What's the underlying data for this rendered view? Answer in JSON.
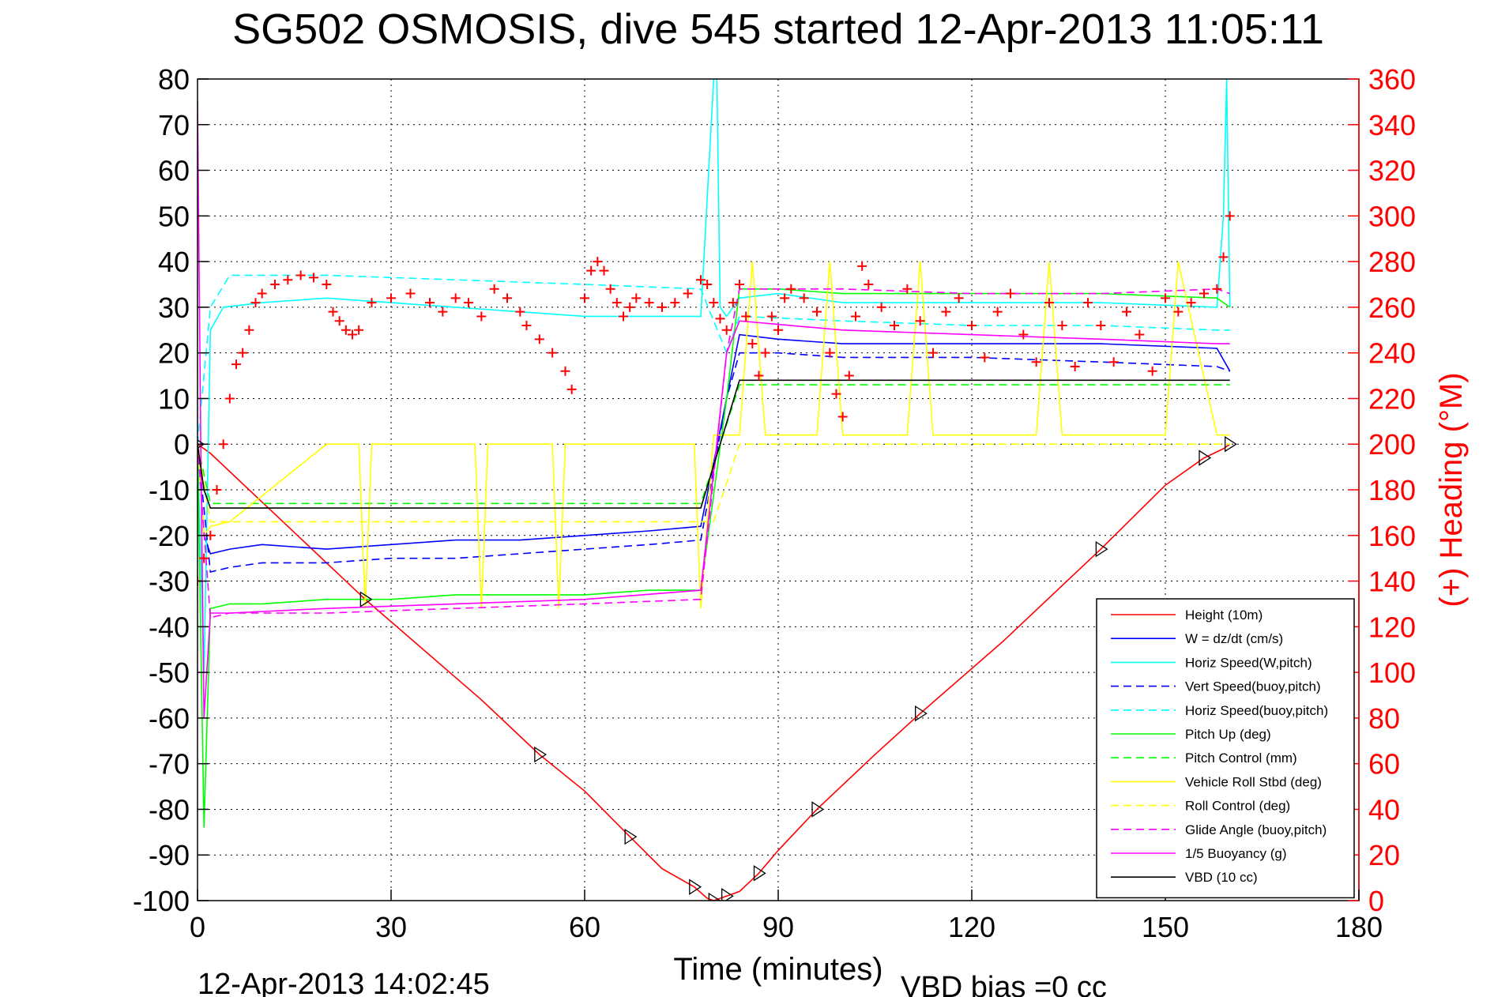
{
  "title": "SG502 OSMOSIS, dive 545 started 12-Apr-2013 11:05:11",
  "footer": {
    "timestamp": "12-Apr-2013 14:02:45",
    "vbd_bias": "VBD bias =0 cc"
  },
  "colors": {
    "height": "#ff0000",
    "w": "#0000ff",
    "horiz_speed": "#00ffff",
    "vert_speed_buoy": "#0000ff",
    "horiz_speed_buoy": "#00ffff",
    "pitch": "#00ff00",
    "pitch_control": "#00ff00",
    "roll": "#ffff00",
    "roll_control": "#ffff00",
    "glide_angle": "#ff00ff",
    "buoyancy": "#ff00ff",
    "vbd": "#000000",
    "heading": "#ff0000"
  },
  "chart_data": {
    "type": "line",
    "xlabel": "Time (minutes)",
    "ylabel": "",
    "y2label": "(+) Heading (°M)",
    "xlim": [
      0,
      180
    ],
    "ylim": [
      -100,
      80
    ],
    "y2lim": [
      0,
      360
    ],
    "xticks": [
      0,
      30,
      60,
      90,
      120,
      150,
      180
    ],
    "yticks": [
      80,
      70,
      60,
      50,
      40,
      30,
      20,
      10,
      0,
      -10,
      -20,
      -30,
      -40,
      -50,
      -60,
      -70,
      -80,
      -90,
      -100
    ],
    "y2ticks": [
      360,
      340,
      320,
      300,
      280,
      260,
      240,
      220,
      200,
      180,
      160,
      140,
      120,
      100,
      80,
      60,
      40,
      20,
      0
    ],
    "grid": true,
    "legend_position": "bottom-right",
    "series": [
      {
        "name": "Height (10m)",
        "style": "solid",
        "color": "#ff0000",
        "x": [
          0,
          2,
          26,
          44,
          53,
          60,
          67,
          72,
          77,
          79,
          80,
          81,
          82,
          84,
          87,
          90,
          96,
          105,
          112,
          125,
          140,
          150,
          156,
          159,
          160
        ],
        "y": [
          0,
          -2,
          -34,
          -56,
          -68,
          -76,
          -86,
          -93,
          -97,
          -99.5,
          -100,
          -99.5,
          -99,
          -98,
          -94,
          -89,
          -80,
          -68,
          -59,
          -43,
          -23,
          -9,
          -3,
          -1,
          0
        ]
      },
      {
        "name": "W = dz/dt (cm/s)",
        "style": "solid",
        "color": "#0000ff",
        "x": [
          0,
          1,
          2,
          5,
          10,
          20,
          30,
          40,
          50,
          60,
          70,
          78,
          82,
          84,
          90,
          100,
          120,
          140,
          158,
          160
        ],
        "y": [
          0,
          -20,
          -24,
          -23,
          -22,
          -23,
          -22,
          -21,
          -21,
          -20,
          -19,
          -18,
          10,
          24,
          23,
          22,
          22,
          22,
          21,
          16
        ]
      },
      {
        "name": "Horiz Speed(W,pitch)",
        "style": "solid",
        "color": "#00ffff",
        "x": [
          0,
          1,
          2,
          4,
          10,
          20,
          30,
          40,
          50,
          60,
          70,
          78,
          80,
          80.5,
          81,
          82,
          84,
          90,
          100,
          120,
          140,
          158,
          159,
          159.5,
          160
        ],
        "y": [
          0,
          -50,
          25,
          30,
          31,
          32,
          31,
          30,
          29,
          28,
          28,
          28,
          80,
          80,
          30,
          28,
          32,
          33,
          31,
          31,
          31,
          30,
          50,
          80,
          30
        ]
      },
      {
        "name": "Vert Speed(buoy,pitch)",
        "style": "dashed",
        "color": "#0000ff",
        "x": [
          0,
          2,
          5,
          10,
          20,
          30,
          40,
          50,
          60,
          70,
          78,
          82,
          84,
          90,
          100,
          120,
          140,
          158,
          160
        ],
        "y": [
          0,
          -28,
          -27,
          -26,
          -26,
          -25,
          -25,
          -24,
          -23,
          -22,
          -21,
          10,
          20,
          20,
          19,
          19,
          18,
          17,
          16
        ]
      },
      {
        "name": "Horiz Speed(buoy,pitch)",
        "style": "dashed",
        "color": "#00ffff",
        "x": [
          0,
          2,
          5,
          20,
          40,
          60,
          78,
          82,
          84,
          100,
          120,
          140,
          158,
          160
        ],
        "y": [
          0,
          30,
          37,
          37,
          36,
          35,
          34,
          20,
          28,
          27,
          26,
          26,
          25,
          25
        ]
      },
      {
        "name": "Pitch Up (deg)",
        "style": "solid",
        "color": "#00ff00",
        "x": [
          0,
          1,
          2,
          5,
          10,
          20,
          30,
          40,
          50,
          60,
          70,
          78,
          82,
          84,
          90,
          100,
          120,
          140,
          158,
          160
        ],
        "y": [
          0,
          -84,
          -36,
          -35,
          -35,
          -34,
          -34,
          -33,
          -33,
          -33,
          -32,
          -32,
          10,
          34,
          34,
          33,
          33,
          33,
          32,
          30
        ]
      },
      {
        "name": "Pitch Control (mm)",
        "style": "dashed",
        "color": "#00ff00",
        "x": [
          0,
          2,
          78,
          84,
          158,
          160
        ],
        "y": [
          0,
          -13,
          -13,
          13,
          13,
          13
        ]
      },
      {
        "name": "Vehicle Roll Stbd (deg)",
        "style": "solid",
        "color": "#ffff00",
        "x": [
          0,
          1,
          2,
          5,
          20,
          25,
          26,
          27,
          40,
          43,
          44,
          45,
          55,
          56,
          57,
          58,
          70,
          77,
          78,
          80,
          84,
          86,
          88,
          90,
          96,
          98,
          100,
          110,
          112,
          114,
          130,
          132,
          134,
          150,
          152,
          158,
          160
        ],
        "y": [
          0,
          -20,
          -18,
          -17,
          0,
          0,
          -36,
          0,
          0,
          0,
          -36,
          0,
          0,
          -36,
          0,
          0,
          0,
          0,
          -36,
          2,
          2,
          40,
          2,
          2,
          2,
          40,
          2,
          2,
          40,
          2,
          2,
          40,
          2,
          2,
          40,
          2,
          2
        ]
      },
      {
        "name": "Roll Control (deg)",
        "style": "dashed",
        "color": "#ffff00",
        "x": [
          0,
          2,
          80,
          84,
          158,
          160
        ],
        "y": [
          0,
          -17,
          -17,
          0,
          0,
          0
        ]
      },
      {
        "name": "Glide Angle (buoy,pitch)",
        "style": "dashed",
        "color": "#ff00ff",
        "x": [
          0,
          2,
          5,
          20,
          40,
          60,
          78,
          82,
          84,
          100,
          120,
          140,
          158,
          160
        ],
        "y": [
          0,
          -38,
          -37,
          -37,
          -36,
          -35,
          -34,
          20,
          34,
          34,
          33,
          33,
          34,
          33
        ]
      },
      {
        "name": "1/5 Buoyancy (g)",
        "style": "solid",
        "color": "#ff00ff",
        "x": [
          0,
          0.5,
          1,
          2,
          5,
          20,
          40,
          60,
          78,
          82,
          84,
          100,
          120,
          140,
          158,
          160
        ],
        "y": [
          75,
          0,
          -60,
          -37,
          -37,
          -36,
          -35,
          -34,
          -32,
          20,
          27,
          25,
          24,
          23,
          22,
          22
        ]
      },
      {
        "name": "VBD (10 cc)",
        "style": "solid",
        "color": "#000000",
        "x": [
          0,
          1,
          2,
          78,
          84,
          158,
          160
        ],
        "y": [
          0,
          -10,
          -14,
          -14,
          14,
          14,
          14
        ]
      }
    ],
    "heading_series": {
      "axis": "right",
      "marker": "+",
      "color": "#ff0000",
      "x": [
        0,
        1,
        2,
        3,
        4,
        5,
        6,
        7,
        8,
        9,
        10,
        12,
        14,
        16,
        18,
        20,
        21,
        22,
        23,
        24,
        25,
        27,
        30,
        33,
        36,
        38,
        40,
        42,
        44,
        46,
        48,
        50,
        51,
        53,
        55,
        57,
        58,
        60,
        61,
        62,
        63,
        64,
        65,
        66,
        67,
        68,
        70,
        72,
        74,
        76,
        78,
        79,
        80,
        81,
        82,
        83,
        84,
        85,
        86,
        87,
        88,
        89,
        90,
        91,
        92,
        94,
        96,
        98,
        99,
        100,
        101,
        102,
        103,
        104,
        106,
        108,
        110,
        112,
        114,
        116,
        118,
        120,
        122,
        124,
        126,
        128,
        130,
        132,
        134,
        136,
        138,
        140,
        142,
        144,
        146,
        148,
        150,
        152,
        154,
        156,
        158,
        159,
        160
      ],
      "y": [
        140,
        150,
        160,
        180,
        200,
        220,
        235,
        240,
        250,
        262,
        266,
        270,
        272,
        274,
        273,
        270,
        258,
        254,
        250,
        248,
        250,
        262,
        264,
        266,
        262,
        258,
        264,
        262,
        256,
        268,
        264,
        258,
        252,
        246,
        240,
        232,
        224,
        264,
        276,
        280,
        276,
        268,
        262,
        256,
        260,
        264,
        262,
        260,
        262,
        266,
        272,
        270,
        262,
        255,
        250,
        262,
        270,
        256,
        244,
        230,
        240,
        256,
        250,
        264,
        268,
        264,
        258,
        240,
        222,
        212,
        230,
        256,
        278,
        270,
        260,
        252,
        268,
        254,
        240,
        258,
        264,
        252,
        238,
        258,
        266,
        248,
        236,
        262,
        252,
        234,
        262,
        252,
        236,
        258,
        248,
        232,
        264,
        258,
        262,
        266,
        268,
        282,
        300
      ]
    }
  }
}
